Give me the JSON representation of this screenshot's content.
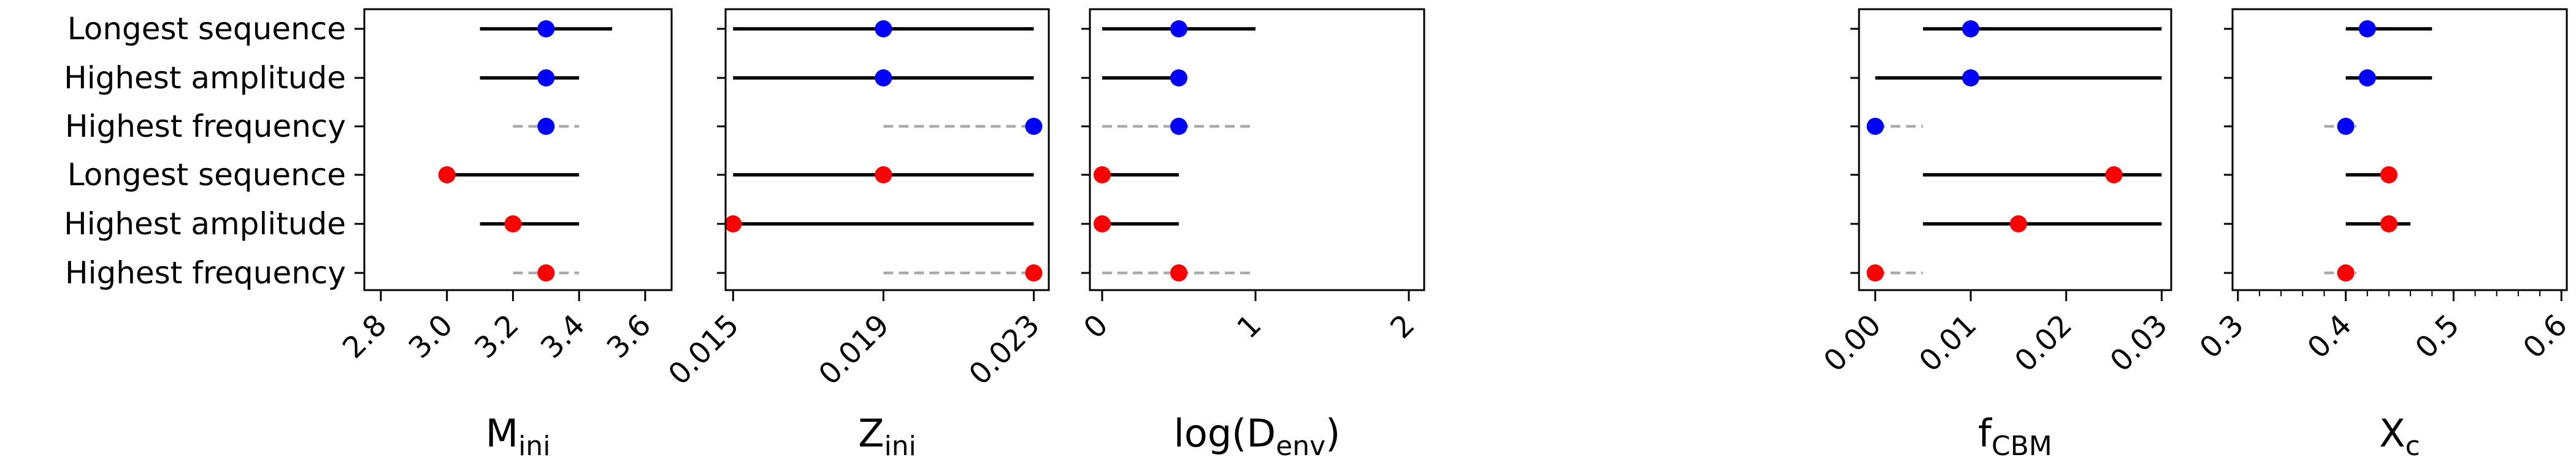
{
  "chart_data": {
    "type": "interval",
    "row_labels": [
      "Longest sequence",
      "Highest amplitude",
      "Highest frequency",
      "Longest sequence",
      "Highest amplitude",
      "Highest frequency"
    ],
    "row_groups": [
      "blue",
      "blue",
      "blue",
      "red",
      "red",
      "red"
    ],
    "group_colors": {
      "blue": "#0000ff",
      "red": "#ff0000"
    },
    "solid_line_color": "#000000",
    "dashed_line_color": "#aaaaaa",
    "grid": false,
    "legend": "none",
    "panels": [
      {
        "label_main": "M",
        "label_sub": "ini",
        "xlim": [
          2.75,
          3.68
        ],
        "ticks": [
          2.8,
          3.0,
          3.2,
          3.4,
          3.6
        ],
        "tick_labels": [
          "2.8",
          "3.0",
          "3.2",
          "3.4",
          "3.6"
        ],
        "minor_ticks": [],
        "points": [
          {
            "value": 3.3,
            "low": 3.1,
            "high": 3.5,
            "style": "solid"
          },
          {
            "value": 3.3,
            "low": 3.1,
            "high": 3.4,
            "style": "solid"
          },
          {
            "value": 3.3,
            "low": 3.2,
            "high": 3.4,
            "style": "dashed"
          },
          {
            "value": 3.0,
            "low": 3.0,
            "high": 3.4,
            "style": "solid"
          },
          {
            "value": 3.2,
            "low": 3.1,
            "high": 3.4,
            "style": "solid"
          },
          {
            "value": 3.3,
            "low": 3.2,
            "high": 3.4,
            "style": "dashed"
          }
        ]
      },
      {
        "label_main": "Z",
        "label_sub": "ini",
        "xlim": [
          0.0148,
          0.0234
        ],
        "ticks": [
          0.015,
          0.019,
          0.023
        ],
        "tick_labels": [
          "0.015",
          "0.019",
          "0.023"
        ],
        "minor_ticks": [],
        "points": [
          {
            "value": 0.019,
            "low": 0.015,
            "high": 0.023,
            "style": "solid"
          },
          {
            "value": 0.019,
            "low": 0.015,
            "high": 0.023,
            "style": "solid"
          },
          {
            "value": 0.023,
            "low": 0.019,
            "high": 0.023,
            "style": "dashed"
          },
          {
            "value": 0.019,
            "low": 0.015,
            "high": 0.023,
            "style": "solid"
          },
          {
            "value": 0.015,
            "low": 0.015,
            "high": 0.023,
            "style": "solid"
          },
          {
            "value": 0.023,
            "low": 0.019,
            "high": 0.023,
            "style": "dashed"
          }
        ]
      },
      {
        "label_main": "log(D",
        "label_sub": "env",
        "label_tail": ")",
        "xlim": [
          -0.08,
          2.1
        ],
        "ticks": [
          0,
          1,
          2
        ],
        "tick_labels": [
          "0",
          "1",
          "2"
        ],
        "minor_ticks": [],
        "points": [
          {
            "value": 0.5,
            "low": 0.0,
            "high": 1.0,
            "style": "solid"
          },
          {
            "value": 0.5,
            "low": 0.0,
            "high": 0.5,
            "style": "solid"
          },
          {
            "value": 0.5,
            "low": 0.0,
            "high": 1.0,
            "style": "dashed"
          },
          {
            "value": 0.0,
            "low": 0.0,
            "high": 0.5,
            "style": "solid"
          },
          {
            "value": 0.0,
            "low": 0.0,
            "high": 0.5,
            "style": "solid"
          },
          {
            "value": 0.5,
            "low": 0.0,
            "high": 1.0,
            "style": "dashed"
          }
        ]
      },
      {
        "label_main": "f",
        "label_sub": "CBM",
        "xlim": [
          -0.0017,
          0.031
        ],
        "ticks": [
          0.0,
          0.01,
          0.02,
          0.03
        ],
        "tick_labels": [
          "0.00",
          "0.01",
          "0.02",
          "0.03"
        ],
        "minor_ticks": [],
        "points": [
          {
            "value": 0.01,
            "low": 0.005,
            "high": 0.03,
            "style": "solid"
          },
          {
            "value": 0.01,
            "low": 0.0,
            "high": 0.03,
            "style": "solid"
          },
          {
            "value": 0.0,
            "low": 0.0,
            "high": 0.005,
            "style": "dashed"
          },
          {
            "value": 0.025,
            "low": 0.005,
            "high": 0.03,
            "style": "solid"
          },
          {
            "value": 0.015,
            "low": 0.005,
            "high": 0.03,
            "style": "solid"
          },
          {
            "value": 0.0,
            "low": 0.0,
            "high": 0.005,
            "style": "dashed"
          }
        ]
      },
      {
        "label_main": "X",
        "label_sub": "c",
        "xlim": [
          0.295,
          0.605
        ],
        "ticks": [
          0.3,
          0.4,
          0.5,
          0.6
        ],
        "tick_labels": [
          "0.3",
          "0.4",
          "0.5",
          "0.6"
        ],
        "minor_ticks": [
          0.32,
          0.34,
          0.36,
          0.38,
          0.42,
          0.44,
          0.46,
          0.48,
          0.52,
          0.54,
          0.56,
          0.58
        ],
        "points": [
          {
            "value": 0.42,
            "low": 0.4,
            "high": 0.48,
            "style": "solid"
          },
          {
            "value": 0.42,
            "low": 0.4,
            "high": 0.48,
            "style": "solid"
          },
          {
            "value": 0.4,
            "low": 0.38,
            "high": 0.41,
            "style": "dashed"
          },
          {
            "value": 0.44,
            "low": 0.4,
            "high": 0.44,
            "style": "solid"
          },
          {
            "value": 0.44,
            "low": 0.4,
            "high": 0.46,
            "style": "solid"
          },
          {
            "value": 0.4,
            "low": 0.38,
            "high": 0.41,
            "style": "dashed"
          }
        ]
      }
    ]
  }
}
